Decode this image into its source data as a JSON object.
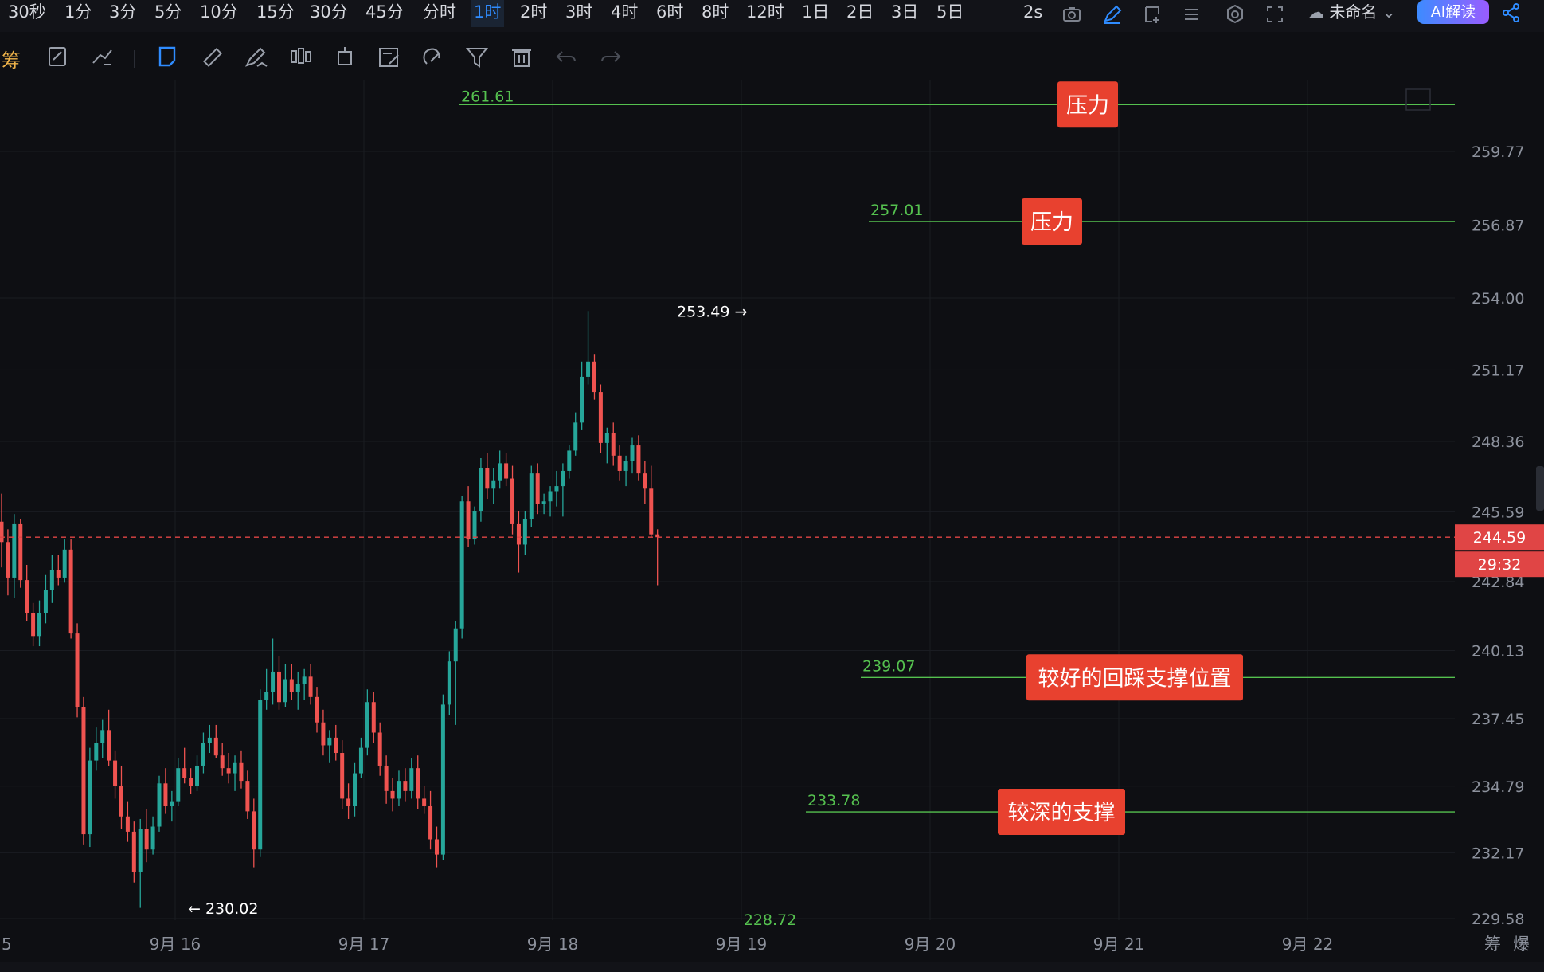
{
  "topbar": {
    "timeframes": [
      "30秒",
      "1分",
      "3分",
      "5分",
      "10分",
      "15分",
      "30分",
      "45分",
      "分时",
      "1时",
      "2时",
      "3时",
      "4时",
      "6时",
      "8时",
      "12时",
      "1日",
      "2日",
      "3日",
      "5日"
    ],
    "active_timeframe": "1时",
    "refresh": "2s",
    "layout_name": "未命名",
    "ai_label": "AI解读",
    "icons": [
      "camera-icon",
      "pen-icon",
      "add-window-icon",
      "list-icon",
      "settings-icon",
      "fullscreen-icon",
      "cloud-icon",
      "share-icon"
    ]
  },
  "toolbar": {
    "label": "筹",
    "tools": [
      "note-icon",
      "trend-tool-icon",
      "select-tool-icon",
      "ruler-icon",
      "brush-icon",
      "candle-tool-icon",
      "measure-icon",
      "edit-icon",
      "magnet-icon",
      "filter-icon",
      "trash-icon",
      "undo-icon",
      "redo-icon"
    ]
  },
  "chart_data": {
    "type": "candlestick",
    "y_ticks": [
      "259.77",
      "256.87",
      "254.00",
      "251.17",
      "248.36",
      "245.59",
      "242.84",
      "240.13",
      "237.45",
      "234.79",
      "232.17",
      "229.58"
    ],
    "x_ticks": [
      "5",
      "9月 16",
      "9月 17",
      "9月 18",
      "9月 19",
      "9月 20",
      "9月 21",
      "9月 22"
    ],
    "ylim": [
      229.5,
      261.7
    ],
    "current_price": "244.59",
    "countdown": "29:32",
    "high": {
      "value": "253.49",
      "label": "253.49 →"
    },
    "low": {
      "value": "230.02",
      "label": "← 230.02"
    },
    "levels": [
      {
        "value": 261.61,
        "label": "261.61",
        "tag": "压力"
      },
      {
        "value": 257.01,
        "label": "257.01",
        "tag": "压力"
      },
      {
        "value": 239.07,
        "label": "239.07",
        "tag": "较好的回踩支撑位置"
      },
      {
        "value": 233.78,
        "label": "233.78",
        "tag": "较深的支撑"
      }
    ],
    "bottom_label": "228.72",
    "corner_labels": [
      "筹",
      "爆"
    ],
    "colors": {
      "up": "#26a69a",
      "down": "#ef5350",
      "level": "#55c14f",
      "tag": "#e8412f",
      "price_line": "#e04545"
    },
    "candles": [
      [
        245.2,
        246.3,
        243.4,
        244.4
      ],
      [
        244.4,
        244.9,
        242.3,
        243.0
      ],
      [
        243.0,
        245.5,
        242.2,
        245.1
      ],
      [
        245.1,
        245.3,
        242.6,
        242.9
      ],
      [
        242.9,
        243.5,
        241.3,
        241.6
      ],
      [
        241.6,
        242.0,
        240.3,
        240.7
      ],
      [
        240.7,
        242.1,
        240.3,
        241.6
      ],
      [
        241.6,
        243.1,
        241.2,
        242.5
      ],
      [
        242.5,
        243.9,
        242.0,
        243.3
      ],
      [
        243.3,
        243.9,
        242.7,
        243.0
      ],
      [
        243.0,
        244.5,
        242.8,
        244.1
      ],
      [
        244.1,
        244.5,
        240.6,
        240.8
      ],
      [
        240.8,
        241.2,
        237.5,
        237.9
      ],
      [
        237.9,
        238.3,
        232.5,
        232.9
      ],
      [
        232.9,
        236.3,
        232.4,
        235.8
      ],
      [
        235.8,
        237.1,
        235.4,
        236.5
      ],
      [
        236.5,
        237.4,
        235.9,
        237.0
      ],
      [
        237.0,
        237.8,
        235.6,
        235.8
      ],
      [
        235.8,
        236.2,
        234.3,
        234.8
      ],
      [
        234.8,
        235.6,
        233.1,
        233.6
      ],
      [
        233.6,
        234.2,
        232.6,
        233.0
      ],
      [
        233.0,
        233.4,
        231.0,
        231.4
      ],
      [
        231.4,
        233.5,
        230.0,
        233.1
      ],
      [
        233.1,
        233.9,
        231.8,
        232.3
      ],
      [
        232.3,
        233.6,
        232.1,
        233.2
      ],
      [
        233.2,
        235.2,
        233.0,
        234.9
      ],
      [
        234.9,
        235.5,
        233.7,
        234.0
      ],
      [
        234.0,
        234.6,
        233.4,
        234.2
      ],
      [
        234.2,
        235.9,
        234.0,
        235.5
      ],
      [
        235.5,
        236.3,
        234.9,
        235.1
      ],
      [
        235.1,
        235.5,
        234.5,
        234.8
      ],
      [
        234.8,
        236.0,
        234.6,
        235.6
      ],
      [
        235.6,
        236.9,
        235.3,
        236.5
      ],
      [
        236.5,
        237.2,
        236.1,
        236.7
      ],
      [
        236.7,
        237.2,
        235.9,
        236.0
      ],
      [
        236.0,
        236.5,
        235.2,
        235.5
      ],
      [
        235.5,
        236.1,
        234.9,
        235.3
      ],
      [
        235.3,
        236.0,
        234.6,
        235.7
      ],
      [
        235.7,
        236.2,
        234.7,
        235.0
      ],
      [
        235.0,
        235.4,
        233.5,
        233.8
      ],
      [
        233.8,
        234.3,
        231.6,
        232.3
      ],
      [
        232.3,
        238.6,
        232.0,
        238.2
      ],
      [
        238.2,
        239.4,
        237.8,
        238.5
      ],
      [
        238.5,
        240.6,
        238.0,
        239.3
      ],
      [
        239.3,
        239.9,
        237.8,
        238.1
      ],
      [
        238.1,
        239.6,
        237.9,
        239.0
      ],
      [
        239.0,
        239.6,
        238.2,
        238.5
      ],
      [
        238.5,
        239.3,
        237.8,
        238.8
      ],
      [
        238.8,
        239.4,
        238.2,
        239.1
      ],
      [
        239.1,
        239.6,
        238.0,
        238.3
      ],
      [
        238.3,
        238.7,
        236.9,
        237.3
      ],
      [
        237.3,
        237.8,
        236.0,
        236.4
      ],
      [
        236.4,
        237.0,
        235.7,
        236.7
      ],
      [
        236.7,
        237.2,
        235.8,
        236.1
      ],
      [
        236.1,
        236.6,
        233.9,
        234.3
      ],
      [
        234.3,
        234.9,
        233.5,
        234.0
      ],
      [
        234.0,
        235.7,
        233.6,
        235.3
      ],
      [
        235.3,
        236.7,
        235.1,
        236.3
      ],
      [
        236.3,
        238.6,
        236.0,
        238.1
      ],
      [
        238.1,
        238.5,
        236.5,
        236.9
      ],
      [
        236.9,
        237.3,
        235.2,
        235.6
      ],
      [
        235.6,
        236.0,
        234.1,
        234.6
      ],
      [
        234.6,
        235.1,
        233.8,
        234.3
      ],
      [
        234.3,
        235.4,
        234.0,
        235.0
      ],
      [
        235.0,
        235.5,
        234.2,
        234.6
      ],
      [
        234.6,
        235.9,
        234.3,
        235.5
      ],
      [
        235.5,
        236.0,
        233.9,
        234.3
      ],
      [
        234.3,
        234.8,
        233.7,
        234.0
      ],
      [
        234.0,
        234.6,
        232.3,
        232.7
      ],
      [
        232.7,
        233.2,
        231.6,
        232.1
      ],
      [
        232.1,
        238.4,
        231.9,
        238.0
      ],
      [
        238.0,
        240.1,
        237.6,
        239.7
      ],
      [
        239.7,
        241.3,
        237.2,
        241.0
      ],
      [
        241.0,
        246.2,
        240.6,
        246.0
      ],
      [
        246.0,
        246.6,
        244.2,
        244.5
      ],
      [
        244.5,
        245.8,
        244.3,
        245.6
      ],
      [
        245.6,
        247.7,
        245.2,
        247.3
      ],
      [
        247.3,
        247.9,
        246.1,
        246.5
      ],
      [
        246.5,
        247.3,
        245.9,
        246.8
      ],
      [
        246.8,
        248.0,
        246.5,
        247.5
      ],
      [
        247.5,
        247.9,
        246.6,
        246.9
      ],
      [
        246.9,
        247.4,
        244.7,
        245.1
      ],
      [
        245.1,
        245.6,
        243.2,
        244.3
      ],
      [
        244.3,
        245.6,
        243.9,
        245.3
      ],
      [
        245.3,
        247.4,
        245.0,
        247.1
      ],
      [
        247.1,
        247.5,
        245.5,
        245.9
      ],
      [
        245.9,
        246.3,
        245.5,
        246.0
      ],
      [
        246.0,
        246.6,
        245.4,
        246.4
      ],
      [
        246.4,
        247.2,
        245.8,
        246.6
      ],
      [
        246.6,
        247.5,
        245.4,
        247.2
      ],
      [
        247.2,
        248.2,
        246.9,
        248.0
      ],
      [
        248.0,
        249.5,
        247.8,
        249.1
      ],
      [
        249.1,
        251.5,
        248.8,
        250.9
      ],
      [
        250.9,
        253.49,
        250.6,
        251.5
      ],
      [
        251.5,
        251.8,
        250.0,
        250.3
      ],
      [
        250.3,
        250.6,
        247.9,
        248.3
      ],
      [
        248.3,
        248.9,
        247.5,
        248.7
      ],
      [
        248.7,
        249.1,
        247.4,
        247.8
      ],
      [
        247.8,
        248.2,
        246.8,
        247.2
      ],
      [
        247.2,
        247.8,
        246.6,
        247.6
      ],
      [
        247.6,
        248.5,
        247.1,
        248.2
      ],
      [
        248.2,
        248.6,
        246.8,
        247.1
      ],
      [
        247.1,
        247.6,
        245.9,
        246.5
      ],
      [
        246.5,
        247.4,
        244.6,
        244.7
      ],
      [
        244.7,
        244.9,
        242.7,
        244.59
      ]
    ]
  }
}
